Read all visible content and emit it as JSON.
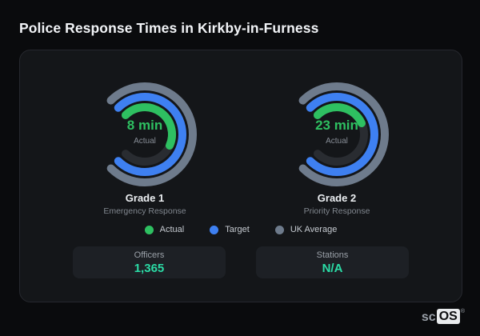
{
  "title": "Police Response Times in Kirkby-in-Furness",
  "colors": {
    "actual": "#2ec061",
    "target": "#3e80f1",
    "uk_average": "#6e7b8c",
    "track": "#292c31",
    "stat_value": "#2bdca6"
  },
  "chart_data": {
    "type": "gauge",
    "title": "Police Response Times in Kirkby-in-Furness",
    "start_deg": 225,
    "max_sweep_deg": 270,
    "gauges": [
      {
        "name": "Grade 1",
        "subtitle": "Emergency Response",
        "actual_label": "8 min",
        "actual_caption": "Actual",
        "rings": [
          {
            "series": "UK Average",
            "color_key": "uk_average",
            "radius": 60,
            "fraction": 1.0
          },
          {
            "series": "Target",
            "color_key": "target",
            "radius": 47,
            "fraction": 1.0
          },
          {
            "series": "Actual",
            "color_key": "actual",
            "radius": 34,
            "fraction": 0.59
          }
        ]
      },
      {
        "name": "Grade 2",
        "subtitle": "Priority Response",
        "actual_label": "23 min",
        "actual_caption": "Actual",
        "rings": [
          {
            "series": "UK Average",
            "color_key": "uk_average",
            "radius": 60,
            "fraction": 1.0
          },
          {
            "series": "Target",
            "color_key": "target",
            "radius": 47,
            "fraction": 1.0
          },
          {
            "series": "Actual",
            "color_key": "actual",
            "radius": 34,
            "fraction": 0.41
          }
        ]
      }
    ],
    "legend": [
      {
        "label": "Actual",
        "color_key": "actual"
      },
      {
        "label": "Target",
        "color_key": "target"
      },
      {
        "label": "UK Average",
        "color_key": "uk_average"
      }
    ]
  },
  "stats": [
    {
      "label": "Officers",
      "value": "1,365"
    },
    {
      "label": "Stations",
      "value": "N/A"
    }
  ],
  "branding": {
    "prefix": "sc",
    "suffix": "OS",
    "registered": "®"
  }
}
